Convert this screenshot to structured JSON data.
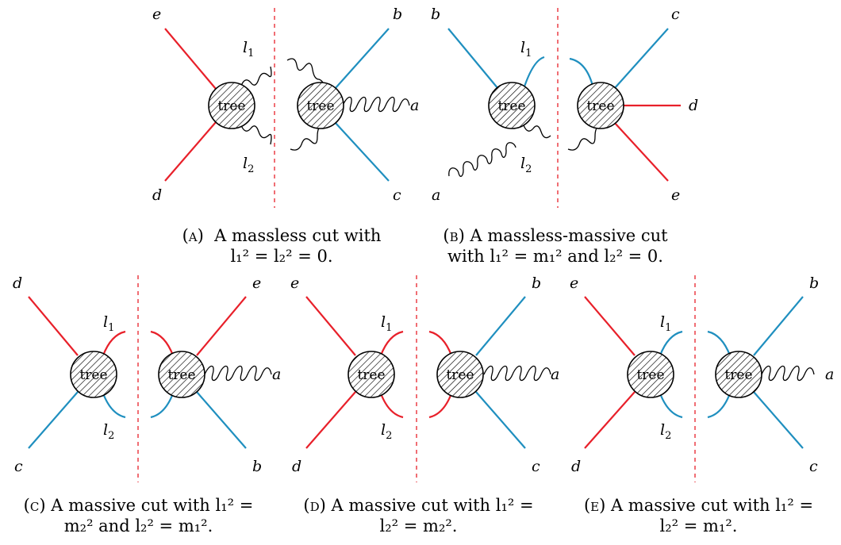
{
  "tree_label": "tree",
  "panels": {
    "a": {
      "left": {
        "top": "e",
        "bottom": "d",
        "l1": "l",
        "l1sub": "1",
        "l2": "l",
        "l2sub": "2"
      },
      "right": {
        "top": "b",
        "bottom": "c",
        "ext": "a"
      },
      "caption_tag": "(a)",
      "caption_line1": "A massless cut with",
      "caption_line2": "l₁² = l₂² = 0."
    },
    "b": {
      "left": {
        "top": "b",
        "bottom": "a",
        "l1": "l",
        "l1sub": "1",
        "l2": "l",
        "l2sub": "2"
      },
      "right": {
        "top": "c",
        "mid": "d",
        "bottom": "e"
      },
      "caption_tag": "(b)",
      "caption_line1": "A massless-massive cut",
      "caption_line2": "with l₁² = m₁² and l₂² = 0."
    },
    "c": {
      "left": {
        "top": "d",
        "bottom": "c",
        "l1": "l",
        "l1sub": "1",
        "l2": "l",
        "l2sub": "2"
      },
      "right": {
        "top": "e",
        "bottom": "b",
        "ext": "a"
      },
      "caption_tag": "(c)",
      "caption_line1": "A massive cut with l₁² =",
      "caption_line2": "m₂² and l₂² = m₁²."
    },
    "d": {
      "left": {
        "top": "e",
        "bottom": "d",
        "l1": "l",
        "l1sub": "1",
        "l2": "l",
        "l2sub": "2"
      },
      "right": {
        "top": "b",
        "bottom": "c",
        "ext": "a"
      },
      "caption_tag": "(d)",
      "caption_line1": "A massive cut with l₁² =",
      "caption_line2": "l₂² = m₂²."
    },
    "e": {
      "left": {
        "top": "e",
        "bottom": "d",
        "l1": "l",
        "l1sub": "1",
        "l2": "l",
        "l2sub": "2"
      },
      "right": {
        "top": "b",
        "bottom": "c",
        "ext": "a"
      },
      "caption_tag": "(e)",
      "caption_line1": "A massive cut with l₁² =",
      "caption_line2": "l₂² = m₁²."
    }
  },
  "colors": {
    "red": "#e8202a",
    "blue": "#1f8fbf",
    "gluon": "#000000"
  }
}
